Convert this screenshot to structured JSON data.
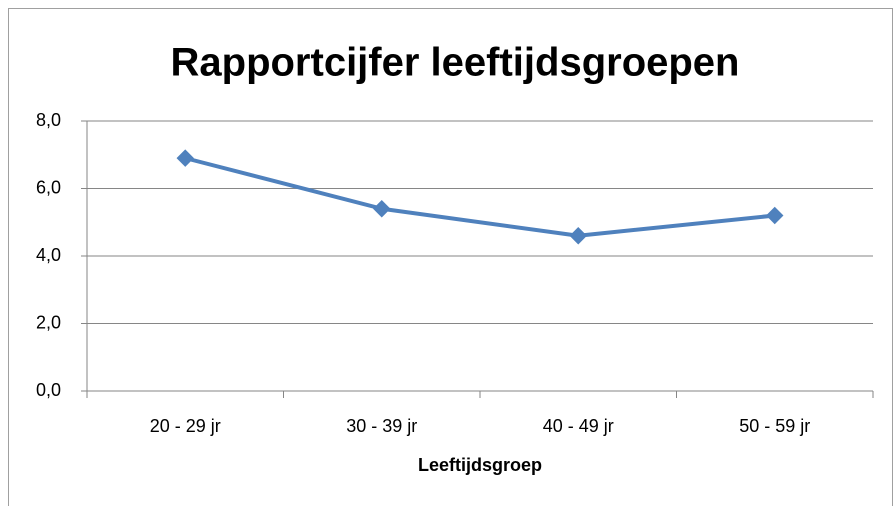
{
  "chart_data": {
    "type": "line",
    "title": "Rapportcijfer leeftijdsgroepen",
    "x_label": "Leeftijdsgroep",
    "categories": [
      "20 - 29 jr",
      "30 - 39 jr",
      "40 - 49 jr",
      "50 - 59 jr"
    ],
    "values": [
      6.9,
      5.4,
      4.6,
      5.2
    ],
    "color": "#4f81bd",
    "ylim": [
      0,
      8
    ],
    "yticks": [
      {
        "value": 0,
        "label": "0,0"
      },
      {
        "value": 2,
        "label": "2,0"
      },
      {
        "value": 4,
        "label": "4,0"
      },
      {
        "value": 6,
        "label": "6,0"
      },
      {
        "value": 8,
        "label": "8,0"
      }
    ],
    "grid": true
  }
}
